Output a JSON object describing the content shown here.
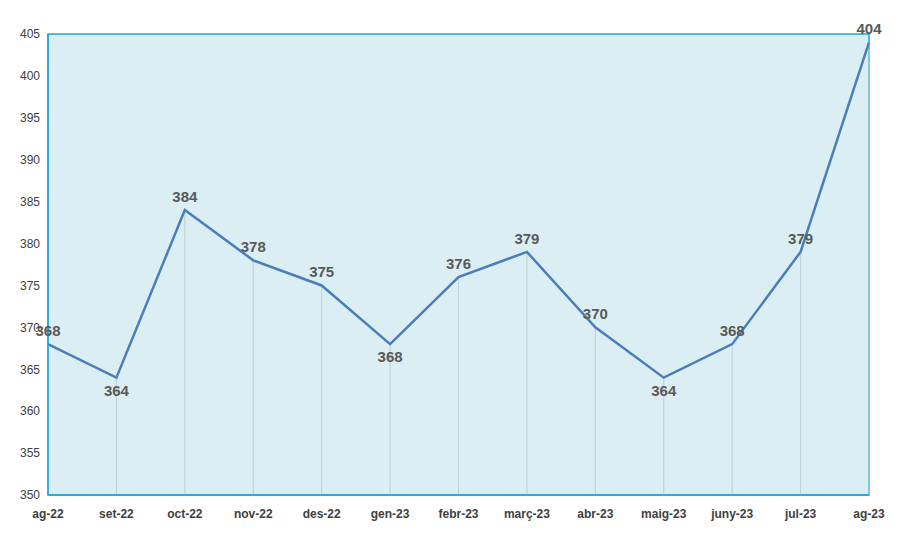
{
  "chart_data": {
    "type": "line",
    "categories": [
      "ag-22",
      "set-22",
      "oct-22",
      "nov-22",
      "des-22",
      "gen-23",
      "febr-23",
      "març-23",
      "abr-23",
      "maig-23",
      "juny-23",
      "jul-23",
      "ag-23"
    ],
    "values": [
      368,
      364,
      384,
      378,
      375,
      368,
      376,
      379,
      370,
      364,
      368,
      379,
      404
    ],
    "color": "#4a7ebb",
    "ylim": [
      350,
      405
    ],
    "yticks": [
      350,
      355,
      360,
      365,
      370,
      375,
      380,
      385,
      390,
      395,
      400,
      405
    ],
    "data_labels": true
  }
}
